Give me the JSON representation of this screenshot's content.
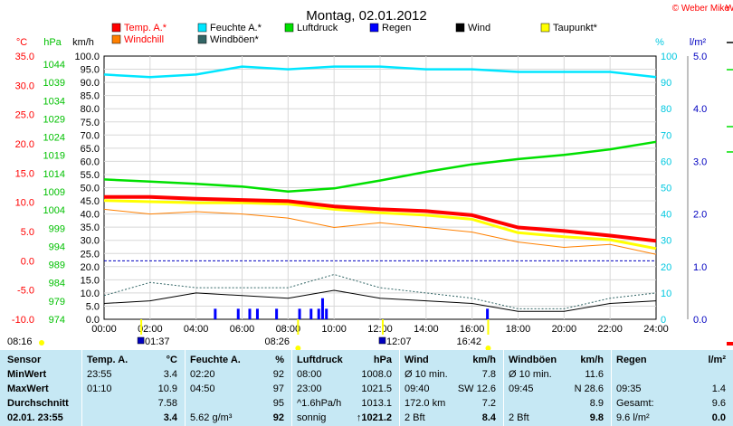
{
  "title": "Montag, 02.01.2012",
  "copyright": "© Weber Mike",
  "legend": [
    {
      "label": "Temp. A.*",
      "color": "#ff0000"
    },
    {
      "label": "Feuchte A.*",
      "color": "#00e6ff"
    },
    {
      "label": "Luftdruck",
      "color": "#00e000"
    },
    {
      "label": "Regen",
      "color": "#0000ff"
    },
    {
      "label": "Wind",
      "color": "#000000"
    },
    {
      "label": "Taupunkt*",
      "color": "#ffff00"
    },
    {
      "label": "Windchill",
      "color": "#ff8000"
    },
    {
      "label": "Windböen*",
      "color": "#336666"
    }
  ],
  "axis_units": {
    "temp": "°C",
    "press": "hPa",
    "wind": "km/h",
    "hum": "%",
    "rain": "l/m²"
  },
  "axes": {
    "temp_ticks": [
      "35.0",
      "30.0",
      "25.0",
      "20.0",
      "15.0",
      "10.0",
      "5.0",
      "0.0",
      "-5.0",
      "-10.0"
    ],
    "press_ticks": [
      "1044",
      "1039",
      "1034",
      "1029",
      "1024",
      "1019",
      "1014",
      "1009",
      "1004",
      "999",
      "994",
      "989",
      "984",
      "979",
      "974"
    ],
    "wind_ticks": [
      "100.0",
      "95.0",
      "90.0",
      "85.0",
      "80.0",
      "75.0",
      "70.0",
      "65.0",
      "60.0",
      "55.0",
      "50.0",
      "45.0",
      "40.0",
      "35.0",
      "30.0",
      "25.0",
      "20.0",
      "15.0",
      "10.0",
      "5.0",
      "0.0"
    ],
    "hum_ticks": [
      "100",
      "90",
      "80",
      "70",
      "60",
      "50",
      "40",
      "30",
      "20",
      "10",
      "0"
    ],
    "rain_ticks": [
      "5.0",
      "4.0",
      "3.0",
      "2.0",
      "1.0",
      "0.0"
    ],
    "x_ticks": [
      "00:00",
      "02:00",
      "04:00",
      "06:00",
      "08:00",
      "10:00",
      "12:00",
      "14:00",
      "16:00",
      "18:00",
      "20:00",
      "22:00",
      "24:00"
    ]
  },
  "markers": {
    "sunrise": "08:16",
    "min_temp": "01:37",
    "max_wind": "08:26",
    "sun_noon": "12:07",
    "sunset": "16:42"
  },
  "chart_data": {
    "type": "line",
    "title": "Montag, 02.01.2012",
    "x_label": "",
    "x_range": [
      "00:00",
      "24:00"
    ],
    "x_hours": [
      0,
      2,
      4,
      6,
      8,
      10,
      12,
      14,
      16,
      18,
      20,
      22,
      24
    ],
    "series": [
      {
        "name": "Temp. A.*",
        "axis": "°C",
        "values": [
          10.9,
          10.9,
          10.6,
          10.4,
          10.2,
          9.3,
          8.8,
          8.5,
          7.8,
          5.7,
          5.1,
          4.3,
          3.4
        ]
      },
      {
        "name": "Feuchte A.*",
        "axis": "%",
        "values": [
          93,
          92,
          93,
          96,
          95,
          96,
          96,
          95,
          95,
          94,
          94,
          94,
          92
        ]
      },
      {
        "name": "Luftdruck",
        "axis": "hPa",
        "values": [
          1011.2,
          1010.6,
          1010.0,
          1009.3,
          1008.0,
          1008.8,
          1010.9,
          1013.2,
          1015.2,
          1016.6,
          1017.7,
          1019.2,
          1021.2
        ]
      },
      {
        "name": "Taupunkt*",
        "axis": "°C",
        "values": [
          10.3,
          10.1,
          9.9,
          9.9,
          9.7,
          8.8,
          8.2,
          7.8,
          7.1,
          4.8,
          4.1,
          3.6,
          2.1
        ]
      },
      {
        "name": "Windchill",
        "axis": "°C",
        "values": [
          8.8,
          8.0,
          8.4,
          8.0,
          7.3,
          5.7,
          6.5,
          5.7,
          4.9,
          3.2,
          2.3,
          2.8,
          1.1
        ]
      },
      {
        "name": "Wind",
        "axis": "km/h",
        "values": [
          6,
          7,
          10,
          9,
          8,
          11,
          8,
          7,
          6,
          3,
          3,
          6,
          7
        ]
      },
      {
        "name": "Windböen*",
        "axis": "km/h",
        "values": [
          9,
          14,
          12,
          12,
          12,
          17,
          12,
          10,
          8,
          4,
          4,
          8,
          10
        ]
      }
    ],
    "rain_bars": [
      {
        "time": "04:50",
        "value": 0.2
      },
      {
        "time": "05:50",
        "value": 0.2
      },
      {
        "time": "06:20",
        "value": 0.2
      },
      {
        "time": "06:40",
        "value": 0.2
      },
      {
        "time": "07:30",
        "value": 0.2
      },
      {
        "time": "08:30",
        "value": 0.2
      },
      {
        "time": "09:00",
        "value": 0.2
      },
      {
        "time": "09:20",
        "value": 0.2
      },
      {
        "time": "09:30",
        "value": 0.4
      },
      {
        "time": "09:40",
        "value": 0.2
      },
      {
        "time": "16:40",
        "value": 0.2
      }
    ]
  },
  "table": {
    "row_labels": [
      "Sensor",
      "MinWert",
      "MaxWert",
      "Durchschnitt",
      "02.01. 23:55"
    ],
    "columns": [
      {
        "h1": "Temp. A.",
        "h2": "°C",
        "rows": [
          [
            "23:55",
            "3.4"
          ],
          [
            "01:10",
            "10.9"
          ],
          [
            "",
            "7.58"
          ],
          [
            "",
            "3.4"
          ]
        ]
      },
      {
        "h1": "Feuchte A.",
        "h2": "%",
        "rows": [
          [
            "02:20",
            "92"
          ],
          [
            "04:50",
            "97"
          ],
          [
            "",
            "95"
          ],
          [
            "5.62 g/m³",
            "92"
          ]
        ]
      },
      {
        "h1": "Luftdruck",
        "h2": "hPa",
        "rows": [
          [
            "08:00",
            "1008.0"
          ],
          [
            "23:00",
            "1021.5"
          ],
          [
            "^1.6hPa/h",
            "1013.1"
          ],
          [
            "sonnig",
            "↑1021.2"
          ]
        ]
      },
      {
        "h1": "Wind",
        "h2": "km/h",
        "rows": [
          [
            "Ø 10 min.",
            "7.8"
          ],
          [
            "09:40",
            "SW 12.6"
          ],
          [
            "172.0 km",
            "7.2"
          ],
          [
            "2 Bft",
            "8.4"
          ]
        ]
      },
      {
        "h1": "Windböen",
        "h2": "km/h",
        "rows": [
          [
            "Ø 10 min.",
            "11.6"
          ],
          [
            "09:45",
            "N 28.6"
          ],
          [
            "",
            "8.9"
          ],
          [
            "2 Bft",
            "9.8"
          ]
        ]
      },
      {
        "h1": "Regen",
        "h2": "l/m²",
        "rows": [
          [
            "",
            ""
          ],
          [
            "09:35",
            "1.4"
          ],
          [
            "Gesamt:",
            "9.6"
          ],
          [
            "9.6 l/m²",
            "0.0"
          ]
        ]
      }
    ]
  }
}
